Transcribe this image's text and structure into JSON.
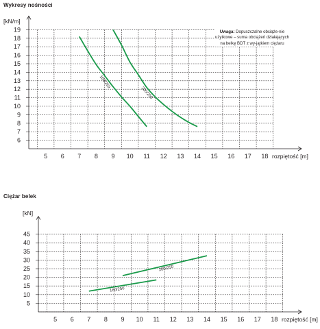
{
  "sections": {
    "load_title": "Wykresy nośności",
    "weight_title": "Ciężar belek"
  },
  "note": {
    "label": "Uwaga:",
    "text": "Dopuszczalne obciąże-nie użytkowe – suma obciążeń działających na belkę BDT z wy-jątkiem ciężaru"
  },
  "colors": {
    "series": "#1a9a4a",
    "grid": "#231f20",
    "text": "#231f20"
  },
  "chart_data": [
    {
      "type": "line",
      "title": "Wykresy nośności",
      "xlabel": "rozpiętość [m]",
      "ylabel": "[kN/m]",
      "xlim": [
        4,
        19
      ],
      "ylim": [
        5,
        19
      ],
      "x_ticks": [
        5,
        6,
        7,
        8,
        9,
        10,
        11,
        12,
        13,
        14,
        15,
        16,
        17,
        18
      ],
      "y_ticks": [
        6,
        7,
        8,
        9,
        10,
        11,
        12,
        13,
        14,
        15,
        16,
        17,
        18,
        19
      ],
      "grid": true,
      "series": [
        {
          "name": "160/250",
          "x": [
            7.0,
            7.5,
            8.0,
            8.5,
            9.0,
            9.5,
            10.0,
            10.5,
            11.0
          ],
          "y": [
            18.2,
            16.5,
            14.9,
            13.6,
            12.3,
            11.1,
            10.0,
            8.8,
            7.6
          ]
        },
        {
          "name": "200/250",
          "x": [
            9.0,
            9.5,
            10.0,
            10.5,
            11.0,
            11.5,
            12.0,
            12.5,
            13.0,
            13.5,
            14.0
          ],
          "y": [
            19.0,
            17.2,
            15.2,
            13.7,
            12.2,
            11.1,
            10.2,
            9.4,
            8.7,
            8.1,
            7.6
          ]
        }
      ]
    },
    {
      "type": "line",
      "title": "Ciężar belek",
      "xlabel": "rozpiętość [m]",
      "ylabel": "[kN]",
      "xlim": [
        4,
        19
      ],
      "ylim": [
        0,
        50
      ],
      "x_ticks": [
        5,
        6,
        7,
        8,
        9,
        10,
        11,
        12,
        13,
        14,
        15,
        16,
        17,
        18
      ],
      "y_ticks": [
        5,
        10,
        15,
        20,
        25,
        30,
        35,
        40,
        45
      ],
      "grid": true,
      "series": [
        {
          "name": "160/250",
          "x": [
            7,
            11
          ],
          "y": [
            12,
            18.5
          ]
        },
        {
          "name": "200/250",
          "x": [
            9,
            14
          ],
          "y": [
            21,
            32.5
          ]
        }
      ]
    }
  ]
}
